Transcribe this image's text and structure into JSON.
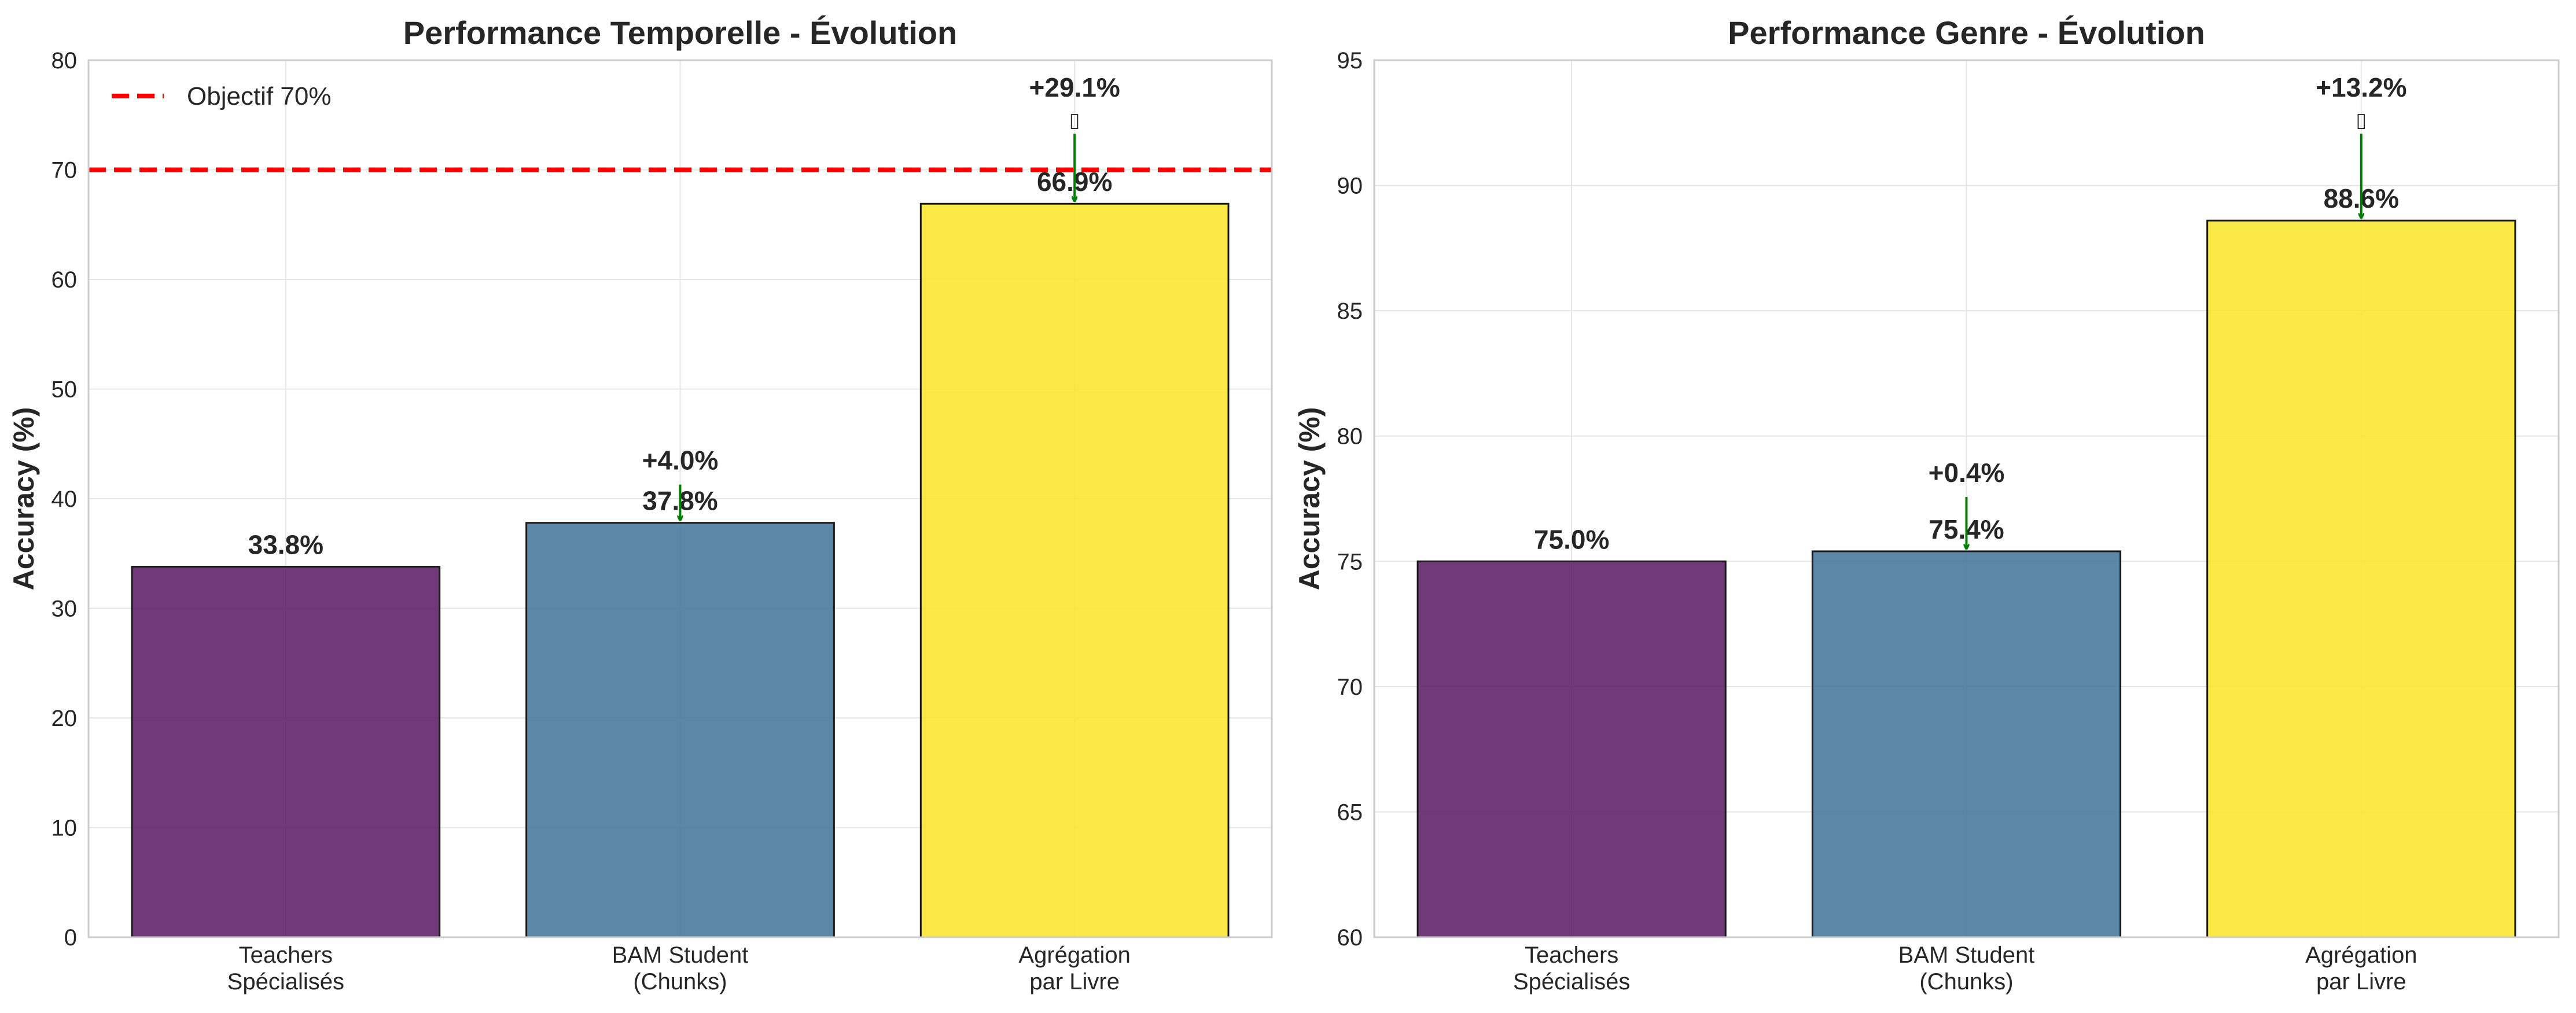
{
  "chart_data": [
    {
      "type": "bar",
      "title": "Performance Temporelle - Évolution",
      "ylabel": "Accuracy (%)",
      "xlabel": "",
      "ylim": [
        0,
        80
      ],
      "yticks": [
        0,
        10,
        20,
        30,
        40,
        50,
        60,
        70,
        80
      ],
      "grid": true,
      "categories": [
        [
          "Teachers",
          "Spécialisés"
        ],
        [
          "BAM Student",
          "(Chunks)"
        ],
        [
          "Agrégation",
          "par Livre"
        ]
      ],
      "values": [
        33.8,
        37.8,
        66.9
      ],
      "value_labels": [
        "33.8%",
        "37.8%",
        "66.9%"
      ],
      "colors": [
        "#5c1f66",
        "#45769a",
        "#fae62e"
      ],
      "improvements": [
        null,
        "+4.0%",
        "+29.1%"
      ],
      "improvement_glyph": [
        null,
        null,
        "▯"
      ],
      "reference_line": {
        "value": 70,
        "label": "Objectif 70%",
        "color": "#ff0000",
        "style": "dashed"
      },
      "legend": {
        "position": "top-left",
        "entries": [
          "Objectif 70%"
        ]
      }
    },
    {
      "type": "bar",
      "title": "Performance Genre - Évolution",
      "ylabel": "Accuracy (%)",
      "xlabel": "",
      "ylim": [
        60,
        95
      ],
      "yticks": [
        60,
        65,
        70,
        75,
        80,
        85,
        90,
        95
      ],
      "grid": true,
      "categories": [
        [
          "Teachers",
          "Spécialisés"
        ],
        [
          "BAM Student",
          "(Chunks)"
        ],
        [
          "Agrégation",
          "par Livre"
        ]
      ],
      "values": [
        75.0,
        75.4,
        88.6
      ],
      "value_labels": [
        "75.0%",
        "75.4%",
        "88.6%"
      ],
      "colors": [
        "#5c1f66",
        "#45769a",
        "#fae62e"
      ],
      "improvements": [
        null,
        "+0.4%",
        "+13.2%"
      ],
      "improvement_glyph": [
        null,
        null,
        "▯"
      ],
      "reference_line": null,
      "legend": null
    }
  ]
}
